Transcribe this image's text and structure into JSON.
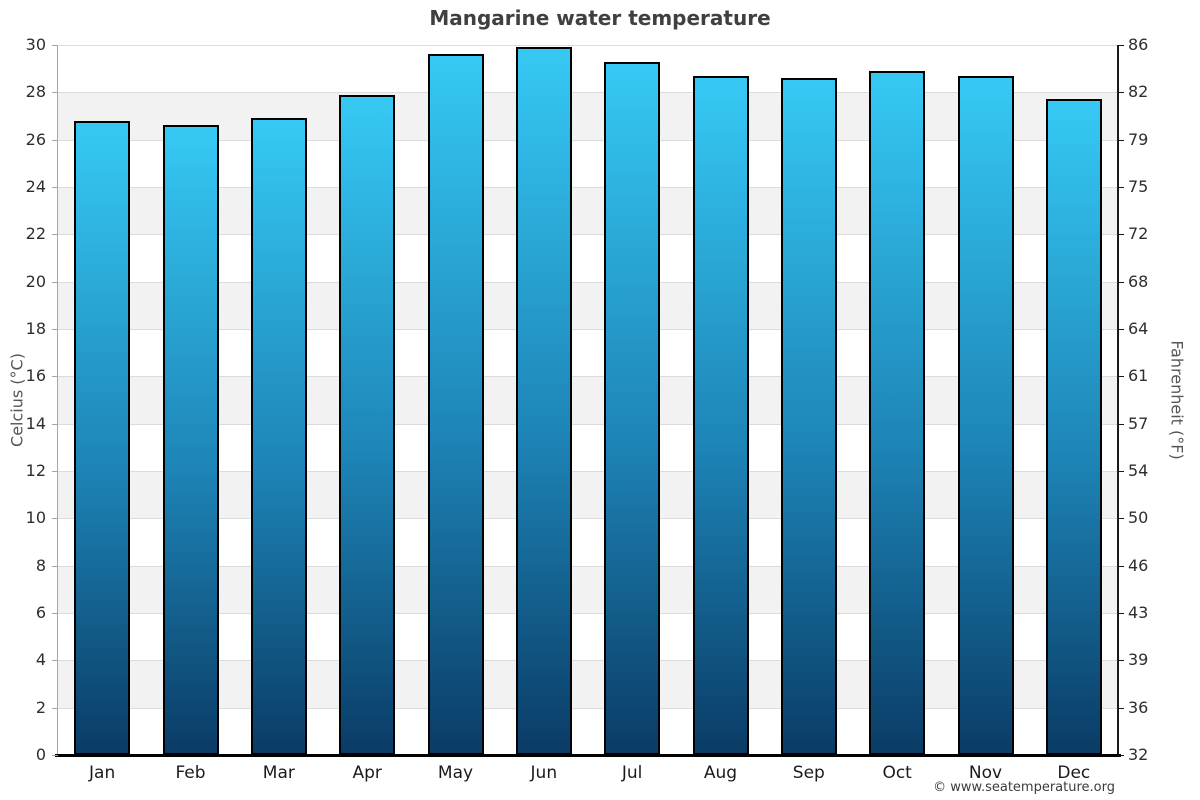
{
  "chart_data": {
    "type": "bar",
    "title": "Mangarine water temperature",
    "categories": [
      "Jan",
      "Feb",
      "Mar",
      "Apr",
      "May",
      "Jun",
      "Jul",
      "Aug",
      "Sep",
      "Oct",
      "Nov",
      "Dec"
    ],
    "values": [
      26.8,
      26.6,
      26.9,
      27.9,
      29.6,
      29.9,
      29.3,
      28.7,
      28.6,
      28.9,
      28.7,
      27.7
    ],
    "ylabel_left": "Celcius (°C)",
    "ylabel_right": "Fahrenheit (°F)",
    "ylim": [
      0,
      30
    ],
    "yticks_celsius": [
      0,
      2,
      4,
      6,
      8,
      10,
      12,
      14,
      16,
      18,
      20,
      22,
      24,
      26,
      28,
      30
    ],
    "yticks_fahrenheit": [
      "32",
      "36",
      "39",
      "43",
      "46",
      "50",
      "54",
      "57",
      "61",
      "64",
      "68",
      "72",
      "75",
      "79",
      "82",
      "86"
    ],
    "legend": "none",
    "grid": "alternating-horizontal-bands",
    "colors": {
      "bar_gradient_top": "#36c9f4",
      "bar_gradient_bottom": "#0a3c66",
      "bar_border": "#000000",
      "band": "#f2f2f2",
      "gridline": "#dcdcdc",
      "title_text": "#404040",
      "tick_text": "#2e2e2e",
      "axis_title_text": "#555555",
      "bottom_axis": "#000000"
    }
  },
  "footer": {
    "copyright": "© www.seatemperature.org"
  }
}
